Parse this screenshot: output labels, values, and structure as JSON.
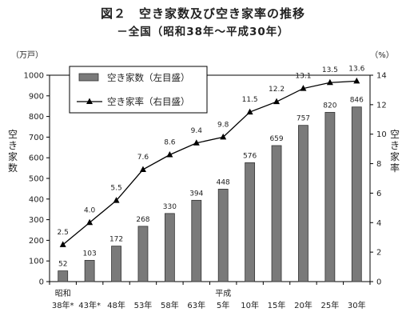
{
  "chart_data": {
    "type": "bar",
    "title": "図２　空き家数及び空き家率の推移",
    "subtitle": "－全国（昭和38年～平成30年）",
    "categories": [
      "38年*",
      "43年*",
      "48年",
      "53年",
      "58年",
      "63年",
      "5年",
      "10年",
      "15年",
      "20年",
      "25年",
      "30年"
    ],
    "era_labels": [
      {
        "text": "昭和",
        "category_index": 0
      },
      {
        "text": "平成",
        "category_index": 6
      }
    ],
    "series": [
      {
        "name": "空き家数（左目盛）",
        "type": "bar",
        "axis": "left",
        "values": [
          52,
          103,
          172,
          268,
          330,
          394,
          448,
          576,
          659,
          757,
          820,
          846
        ],
        "labels": [
          "52",
          "103",
          "172",
          "268",
          "330",
          "394",
          "448",
          "576",
          "659",
          "757",
          "820",
          "846"
        ],
        "color": "#7a7a7a"
      },
      {
        "name": "空き家率（右目盛）",
        "type": "line",
        "axis": "right",
        "values": [
          2.5,
          4.0,
          5.5,
          7.6,
          8.6,
          9.4,
          9.8,
          11.5,
          12.2,
          13.1,
          13.5,
          13.6
        ],
        "labels": [
          "2.5",
          "4.0",
          "5.5",
          "7.6",
          "8.6",
          "9.4",
          "9.8",
          "11.5",
          "12.2",
          "13.1",
          "13.5",
          "13.6"
        ],
        "color": "#000000"
      }
    ],
    "y_left": {
      "label": "空き家数",
      "unit": "（万戸）",
      "ylim": [
        0,
        1000
      ],
      "ticks": [
        "0",
        "100",
        "200",
        "300",
        "400",
        "500",
        "600",
        "700",
        "800",
        "900",
        "1000"
      ]
    },
    "y_right": {
      "label": "空き家率",
      "unit": "（%）",
      "ylim": [
        0,
        14
      ],
      "ticks": [
        "0",
        "2",
        "4",
        "6",
        "8",
        "10",
        "12",
        "14"
      ]
    },
    "legend_position": "top-left",
    "grid": false
  }
}
